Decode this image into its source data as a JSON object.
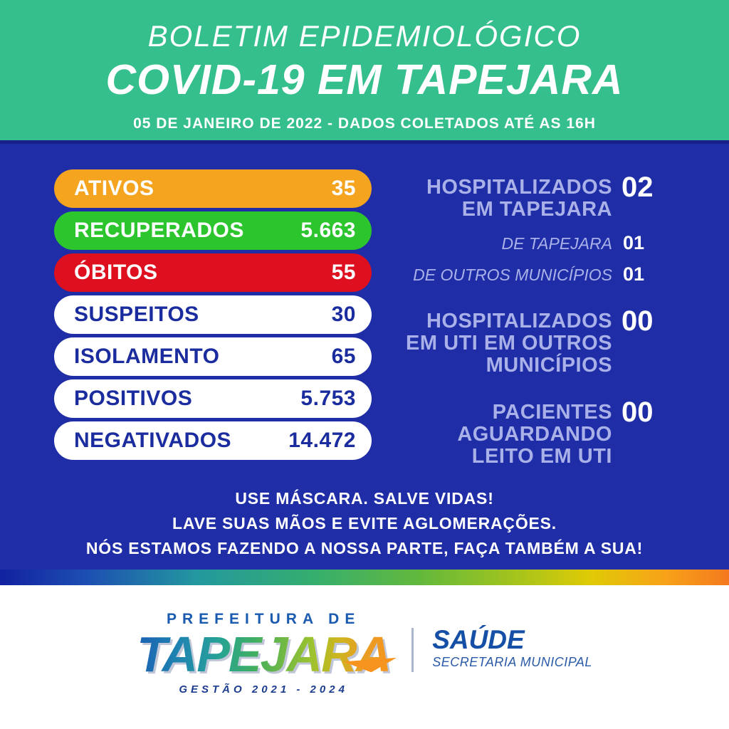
{
  "header": {
    "title_line1": "BOLETIM EPIDEMIOLÓGICO",
    "title_line2": "COVID-19 EM TAPEJARA",
    "date_line": "05 DE JANEIRO DE 2022 - DADOS COLETADOS ATÉ AS 16H"
  },
  "panel": {
    "stats": [
      {
        "label": "ATIVOS",
        "value": "35",
        "bg": "#F5A41F",
        "text": "#FFFFFF"
      },
      {
        "label": "RECUPERADOS",
        "value": "5.663",
        "bg": "#2CC52E",
        "text": "#FFFFFF"
      },
      {
        "label": "ÓBITOS",
        "value": "55",
        "bg": "#DE1020",
        "text": "#FFFFFF"
      },
      {
        "label": "SUSPEITOS",
        "value": "30",
        "bg": "#FFFFFF",
        "text": "#1B2D9E"
      },
      {
        "label": "ISOLAMENTO",
        "value": "65",
        "bg": "#FFFFFF",
        "text": "#1B2D9E"
      },
      {
        "label": "POSITIVOS",
        "value": "5.753",
        "bg": "#FFFFFF",
        "text": "#1B2D9E"
      },
      {
        "label": "NEGATIVADOS",
        "value": "14.472",
        "bg": "#FFFFFF",
        "text": "#1B2D9E"
      }
    ],
    "hospital": [
      {
        "lines": [
          "HOSPITALIZADOS",
          "EM TAPEJARA"
        ],
        "value": "02",
        "subrows": [
          {
            "label": "DE TAPEJARA",
            "value": "01"
          },
          {
            "label": "DE OUTROS MUNICÍPIOS",
            "value": "01"
          }
        ]
      },
      {
        "lines": [
          "HOSPITALIZADOS",
          "EM UTI EM OUTROS",
          "MUNICÍPIOS"
        ],
        "value": "00",
        "subrows": []
      },
      {
        "lines": [
          "PACIENTES",
          "AGUARDANDO",
          "LEITO EM UTI"
        ],
        "value": "00",
        "subrows": []
      }
    ],
    "message_lines": [
      "USE MÁSCARA. SALVE VIDAS!",
      "LAVE SUAS MÃOS E EVITE AGLOMERAÇÕES.",
      "NÓS ESTAMOS FAZENDO A NOSSA PARTE, FAÇA TAMBÉM A SUA!"
    ]
  },
  "footer": {
    "prefeitura": "PREFEITURA DE",
    "city": "TAPEJARA",
    "gestao": "GESTÃO 2021 - 2024",
    "dept": "SAÚDE",
    "dept_sub": "SECRETARIA MUNICIPAL"
  },
  "colors": {
    "header_bg": "#34BF8D",
    "panel_bg": "#1F2EA6",
    "panel_top_edge": "#18208C",
    "soft_label": "#A9B1E8",
    "value_white": "#FFFFFF",
    "footer_bg": "#FFFFFF",
    "prefeitura_blue": "#1A5BB0",
    "gestao_blue": "#1B3C8F",
    "saude_blue": "#1550A6",
    "secretaria_blue": "#2A5AA8",
    "divider_gray": "#A9B6CC",
    "swoosh_orange": "#F79420",
    "rainbow": [
      "#1221A0 0%",
      "#1D4FB2 12%",
      "#23989F 27%",
      "#35AE6E 43%",
      "#64B93B 58%",
      "#A6C41C 71%",
      "#DFCA05 81%",
      "#F7A318 91%",
      "#F4791F 100%"
    ],
    "logo_gradient": [
      "#1A60B4 0%",
      "#1F86B0 18%",
      "#27A394 33%",
      "#3FAE62 46%",
      "#71B944 58%",
      "#9DC22F 69%",
      "#CDB51E 79%",
      "#E89E24 89%",
      "#F7941D 100%"
    ]
  }
}
